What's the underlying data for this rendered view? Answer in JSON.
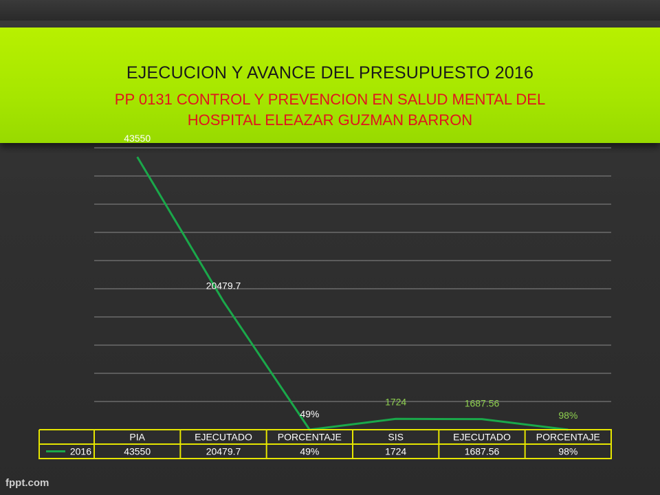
{
  "title": {
    "main": "EJECUCION Y AVANCE DEL PRESUPUESTO 2016",
    "subtitle_line1": "PP 0131 CONTROL Y PREVENCION EN SALUD MENTAL DEL",
    "subtitle_line2": "HOSPITAL ELEAZAR GUZMAN BARRON"
  },
  "footer": {
    "logo_text": "fppt.com"
  },
  "colors": {
    "banner": "#a6e600",
    "subtitle": "#e0141e",
    "series_line": "#1aa84a",
    "label_white": "#ffffff",
    "label_green": "#8fd14f",
    "table_border": "#e6e600"
  },
  "chart_data": {
    "type": "line",
    "categories": [
      "PIA",
      "EJECUTADO",
      "PORCENTAJE",
      "SIS",
      "EJECUTADO",
      "PORCENTAJE"
    ],
    "series": [
      {
        "name": "2016",
        "values": [
          43550,
          20479.7,
          0.49,
          1724,
          1687.56,
          0.98
        ],
        "labels": [
          "43550",
          "20479.7",
          "49%",
          "1724",
          "1687.56",
          "98%"
        ],
        "label_colors": [
          "#ffffff",
          "#ffffff",
          "#ffffff",
          "#8fd14f",
          "#8fd14f",
          "#8fd14f"
        ]
      }
    ],
    "ylim": [
      0,
      45000
    ],
    "grid": true,
    "legend": "data-table",
    "data_table": {
      "headers": [
        "PIA",
        "EJECUTADO",
        "PORCENTAJE",
        "SIS",
        "EJECUTADO",
        "PORCENTAJE"
      ],
      "rows": [
        {
          "label": "2016",
          "cells": [
            "43550",
            "20479.7",
            "49%",
            "1724",
            "1687.56",
            "98%"
          ]
        }
      ]
    }
  }
}
